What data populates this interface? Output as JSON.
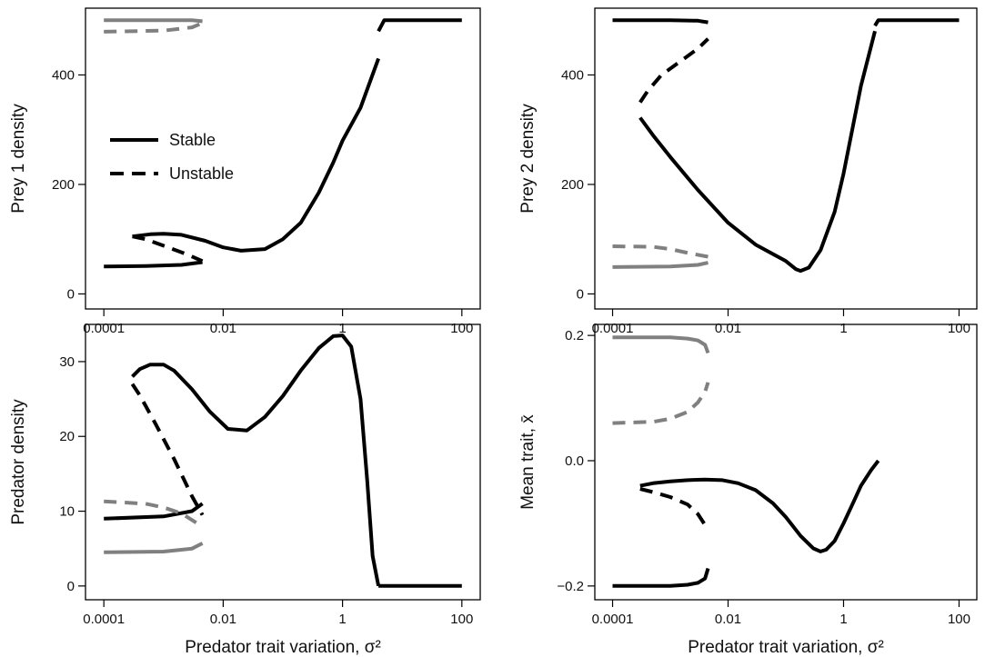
{
  "colors": {
    "stable_primary": "#000000",
    "secondary": "#808080",
    "axis": "#000000"
  },
  "legend": {
    "stable": "Stable",
    "unstable": "Unstable",
    "placement": "left, upper-middle of top-left panel"
  },
  "chart_data": [
    {
      "type": "line",
      "id": "prey1",
      "ylabel": "Prey 1 density",
      "xlabel": "",
      "xscale": "log",
      "xlim": [
        0.0001,
        100
      ],
      "ylim": [
        0,
        500
      ],
      "xticks": [
        "0.0001",
        "0.01",
        "1",
        "100"
      ],
      "yticks": [
        "0",
        "200",
        "400"
      ],
      "series": [
        {
          "group": "black",
          "style": "solid",
          "x": [
            0.0001,
            0.0005,
            0.002,
            0.0045
          ],
          "y": [
            50,
            51,
            53,
            58
          ]
        },
        {
          "group": "black",
          "style": "dashed",
          "x": [
            0.0003,
            0.0005,
            0.001,
            0.0025,
            0.0045
          ],
          "y": [
            105,
            100,
            88,
            72,
            60
          ]
        },
        {
          "group": "black",
          "style": "solid",
          "x": [
            0.0003,
            0.0006,
            0.001,
            0.002,
            0.005,
            0.01,
            0.02,
            0.05,
            0.1,
            0.2,
            0.4,
            0.7,
            1,
            2,
            4
          ],
          "y": [
            105,
            109,
            110,
            108,
            97,
            85,
            79,
            82,
            100,
            130,
            185,
            240,
            280,
            340,
            430
          ]
        },
        {
          "group": "black",
          "style": "solid",
          "x": [
            4,
            5,
            10,
            100
          ],
          "y": [
            480,
            500,
            500,
            500
          ]
        },
        {
          "group": "grey",
          "style": "solid",
          "x": [
            0.0001,
            0.001,
            0.003,
            0.0045
          ],
          "y": [
            500,
            500,
            500,
            498
          ]
        },
        {
          "group": "grey",
          "style": "dashed",
          "x": [
            0.0001,
            0.001,
            0.003,
            0.0045
          ],
          "y": [
            479,
            481,
            487,
            495
          ]
        }
      ]
    },
    {
      "type": "line",
      "id": "prey2",
      "ylabel": "Prey 2 density",
      "xlabel": "",
      "xscale": "log",
      "xlim": [
        0.0001,
        100
      ],
      "ylim": [
        0,
        500
      ],
      "xticks": [
        "0.0001",
        "0.01",
        "1",
        "100"
      ],
      "yticks": [
        "0",
        "200",
        "400"
      ],
      "series": [
        {
          "group": "black",
          "style": "solid",
          "x": [
            0.0001,
            0.001,
            0.003,
            0.0045
          ],
          "y": [
            500,
            500,
            499,
            496
          ]
        },
        {
          "group": "black",
          "style": "dashed",
          "x": [
            0.0003,
            0.0004,
            0.0007,
            0.0015,
            0.003,
            0.0045
          ],
          "y": [
            350,
            370,
            400,
            425,
            448,
            466
          ]
        },
        {
          "group": "black",
          "style": "solid",
          "x": [
            0.0003,
            0.0005,
            0.001,
            0.003,
            0.01,
            0.03,
            0.1,
            0.15,
            0.18,
            0.25,
            0.4,
            0.7,
            1,
            2,
            3.5
          ],
          "y": [
            322,
            290,
            250,
            190,
            130,
            90,
            60,
            45,
            42,
            48,
            80,
            150,
            220,
            380,
            480
          ]
        },
        {
          "group": "black",
          "style": "solid",
          "x": [
            3.5,
            4,
            10,
            100
          ],
          "y": [
            490,
            500,
            500,
            500
          ]
        },
        {
          "group": "grey",
          "style": "solid",
          "x": [
            0.0001,
            0.001,
            0.003,
            0.0045
          ],
          "y": [
            49,
            50,
            53,
            57
          ]
        },
        {
          "group": "grey",
          "style": "dashed",
          "x": [
            0.0001,
            0.0005,
            0.001,
            0.002,
            0.0045
          ],
          "y": [
            87,
            86,
            82,
            75,
            68
          ]
        }
      ]
    },
    {
      "type": "line",
      "id": "predator",
      "ylabel": "Predator density",
      "xlabel": "Predator trait variation, σ²",
      "xscale": "log",
      "xlim": [
        0.0001,
        100
      ],
      "ylim": [
        0,
        33.5
      ],
      "xticks": [
        "0.0001",
        "0.01",
        "1",
        "100"
      ],
      "yticks": [
        "0",
        "10",
        "20",
        "30"
      ],
      "series": [
        {
          "group": "black",
          "style": "solid",
          "x": [
            0.0001,
            0.001,
            0.003,
            0.0045
          ],
          "y": [
            9,
            9.3,
            10,
            11
          ]
        },
        {
          "group": "black",
          "style": "dashed",
          "x": [
            0.0003,
            0.0004,
            0.0007,
            0.0015,
            0.003,
            0.0045
          ],
          "y": [
            27,
            25.5,
            22,
            17,
            12,
            9.5
          ]
        },
        {
          "group": "black",
          "style": "solid",
          "x": [
            0.0003,
            0.0004,
            0.0006,
            0.001,
            0.0015,
            0.003,
            0.006,
            0.012,
            0.025,
            0.05,
            0.1,
            0.2,
            0.4,
            0.7,
            1,
            1.4,
            2,
            2.6,
            3.2,
            4
          ],
          "y": [
            28,
            29,
            29.6,
            29.6,
            28.8,
            26.3,
            23.3,
            21,
            20.8,
            22.6,
            25.4,
            28.8,
            31.8,
            33.4,
            33.5,
            32,
            25,
            14,
            4,
            0
          ]
        },
        {
          "group": "black",
          "style": "solid",
          "x": [
            4,
            10,
            100
          ],
          "y": [
            0,
            0,
            0
          ]
        },
        {
          "group": "grey",
          "style": "solid",
          "x": [
            0.0001,
            0.001,
            0.003,
            0.0045
          ],
          "y": [
            4.5,
            4.6,
            5,
            5.7
          ]
        },
        {
          "group": "grey",
          "style": "dashed",
          "x": [
            0.0001,
            0.0005,
            0.001,
            0.002,
            0.004
          ],
          "y": [
            11.3,
            11,
            10.5,
            9.7,
            8.2
          ]
        }
      ]
    },
    {
      "type": "line",
      "id": "meantrait",
      "ylabel": "Mean trait, x̄",
      "xlabel": "Predator trait variation, σ²",
      "xscale": "log",
      "xlim": [
        0.0001,
        100
      ],
      "ylim": [
        -0.2,
        0.2
      ],
      "xticks": [
        "0.0001",
        "0.01",
        "1",
        "100"
      ],
      "yticks": [
        "−0.2",
        "0.0",
        "0.2"
      ],
      "series": [
        {
          "group": "black",
          "style": "solid",
          "x": [
            0.0001,
            0.0005,
            0.001,
            0.002,
            0.003,
            0.004,
            0.0045
          ],
          "y": [
            -0.2,
            -0.2,
            -0.2,
            -0.198,
            -0.195,
            -0.188,
            -0.172
          ]
        },
        {
          "group": "black",
          "style": "dashed",
          "x": [
            0.0003,
            0.0005,
            0.001,
            0.002,
            0.003,
            0.0045
          ],
          "y": [
            -0.045,
            -0.05,
            -0.058,
            -0.07,
            -0.085,
            -0.11
          ]
        },
        {
          "group": "black",
          "style": "solid",
          "x": [
            0.0003,
            0.0005,
            0.001,
            0.002,
            0.004,
            0.008,
            0.015,
            0.03,
            0.06,
            0.1,
            0.18,
            0.3,
            0.4,
            0.5,
            0.7,
            1,
            1.5,
            2,
            3,
            4
          ],
          "y": [
            -0.04,
            -0.036,
            -0.033,
            -0.031,
            -0.03,
            -0.031,
            -0.036,
            -0.047,
            -0.068,
            -0.09,
            -0.12,
            -0.14,
            -0.145,
            -0.142,
            -0.128,
            -0.1,
            -0.065,
            -0.04,
            -0.015,
            0
          ]
        },
        {
          "group": "grey",
          "style": "solid",
          "x": [
            0.0001,
            0.001,
            0.002,
            0.003,
            0.004,
            0.0045
          ],
          "y": [
            0.197,
            0.197,
            0.195,
            0.192,
            0.185,
            0.172
          ]
        },
        {
          "group": "grey",
          "style": "dashed",
          "x": [
            0.0001,
            0.0005,
            0.001,
            0.002,
            0.003,
            0.004,
            0.0045
          ],
          "y": [
            0.06,
            0.062,
            0.067,
            0.078,
            0.093,
            0.11,
            0.125
          ]
        }
      ]
    }
  ]
}
